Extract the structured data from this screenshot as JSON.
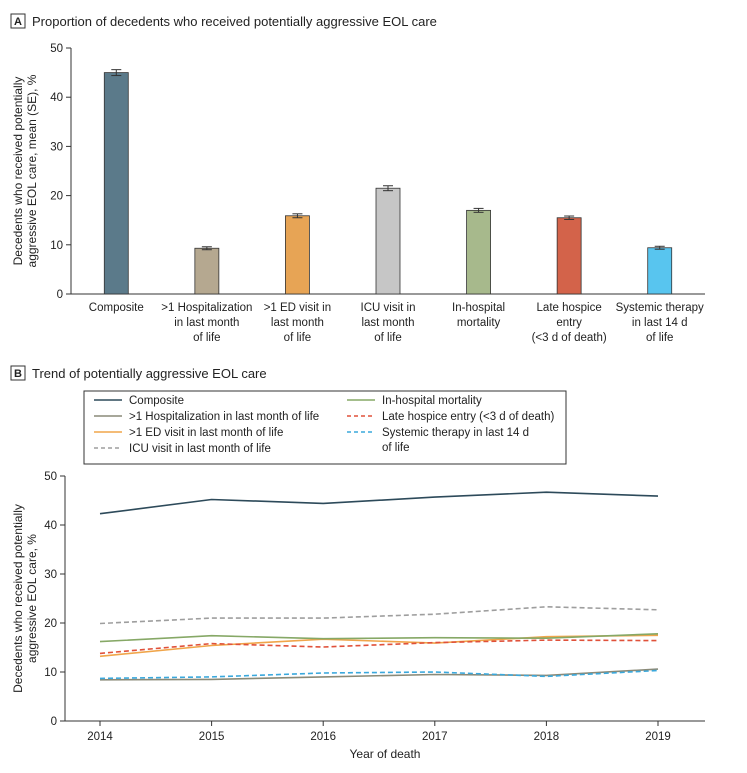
{
  "chart_data": [
    {
      "type": "bar",
      "panel_letter": "A",
      "title": "Proportion of decedents who received potentially aggressive EOL care",
      "ylabel_lines": [
        "Decedents who received potentially",
        "aggressive EOL care, mean (SE), %"
      ],
      "ylim": [
        0,
        50
      ],
      "yticks": [
        0,
        10,
        20,
        30,
        40,
        50
      ],
      "grid": false,
      "categories": [
        "Composite",
        ">1 Hospitalization in last month of life",
        ">1 ED visit in last month of life",
        "ICU visit in last month of life",
        "In-hospital mortality",
        "Late hospice entry (<3 d of death)",
        "Systemic therapy in last 14 d of life"
      ],
      "category_lines": [
        [
          "Composite"
        ],
        [
          ">1 Hospitalization",
          "in last month",
          "of life"
        ],
        [
          ">1 ED visit in",
          "last month",
          "of life"
        ],
        [
          "ICU visit in",
          "last month",
          "of life"
        ],
        [
          "In-hospital",
          "mortality"
        ],
        [
          "Late hospice",
          "entry",
          "(<3 d of death)"
        ],
        [
          "Systemic therapy",
          "in last 14 d",
          "of life"
        ]
      ],
      "values": [
        45.0,
        9.3,
        15.9,
        21.5,
        17.0,
        15.5,
        9.4
      ],
      "se": [
        0.6,
        0.3,
        0.4,
        0.5,
        0.4,
        0.35,
        0.3
      ],
      "colors": [
        "#5b7a8a",
        "#b5a890",
        "#e7a455",
        "#c6c6c6",
        "#a7b98c",
        "#d3634a",
        "#58c5ef"
      ]
    },
    {
      "type": "line",
      "panel_letter": "B",
      "title": "Trend of potentially aggressive EOL care",
      "xlabel": "Year of death",
      "ylabel_lines": [
        "Decedents who received potentially",
        "aggressive EOL care, %"
      ],
      "x": [
        2014,
        2015,
        2016,
        2017,
        2018,
        2019
      ],
      "ylim": [
        0,
        50
      ],
      "yticks": [
        0,
        10,
        20,
        30,
        40,
        50
      ],
      "grid": false,
      "legend_position": "top",
      "series": [
        {
          "name": "Composite",
          "values": [
            42.3,
            45.2,
            44.4,
            45.7,
            46.7,
            45.9
          ],
          "color": "#2d4a5a",
          "dash": false
        },
        {
          "name": ">1 Hospitalization in last month of life",
          "values": [
            8.4,
            8.5,
            9.0,
            9.5,
            9.3,
            10.6
          ],
          "color": "#8a8a78",
          "dash": false
        },
        {
          "name": ">1 ED visit in last month of life",
          "values": [
            13.2,
            15.4,
            16.7,
            15.9,
            17.2,
            17.5
          ],
          "color": "#f0a54a",
          "dash": false
        },
        {
          "name": "ICU visit in last month of life",
          "values": [
            19.9,
            21.0,
            21.0,
            21.8,
            23.3,
            22.7
          ],
          "color": "#9e9e9e",
          "dash": true
        },
        {
          "name": "In-hospital mortality",
          "values": [
            16.2,
            17.4,
            16.8,
            17.0,
            16.9,
            17.8
          ],
          "color": "#86a866",
          "dash": false
        },
        {
          "name": "Late hospice entry (<3 d of death)",
          "values": [
            13.8,
            15.8,
            15.1,
            16.0,
            16.5,
            16.4
          ],
          "color": "#e0513a",
          "dash": true
        },
        {
          "name": "Systemic therapy in last 14 d of life",
          "values": [
            8.7,
            9.0,
            9.8,
            10.0,
            9.1,
            10.3
          ],
          "color": "#3aa8dc",
          "dash": true
        }
      ],
      "legend_rows": [
        {
          "name_lines": [
            "Composite"
          ],
          "series": 0
        },
        {
          "name_lines": [
            "In-hospital mortality"
          ],
          "series": 4
        },
        {
          "name_lines": [
            ">1 Hospitalization in last month of life"
          ],
          "series": 1
        },
        {
          "name_lines": [
            "Late hospice entry (<3 d of death)"
          ],
          "series": 5
        },
        {
          "name_lines": [
            ">1 ED visit in last month of life"
          ],
          "series": 2
        },
        {
          "name_lines": [
            "Systemic therapy in last 14 d",
            "of life"
          ],
          "series": 6
        },
        {
          "name_lines": [
            "ICU visit in last month of life"
          ],
          "series": 3
        }
      ]
    }
  ]
}
